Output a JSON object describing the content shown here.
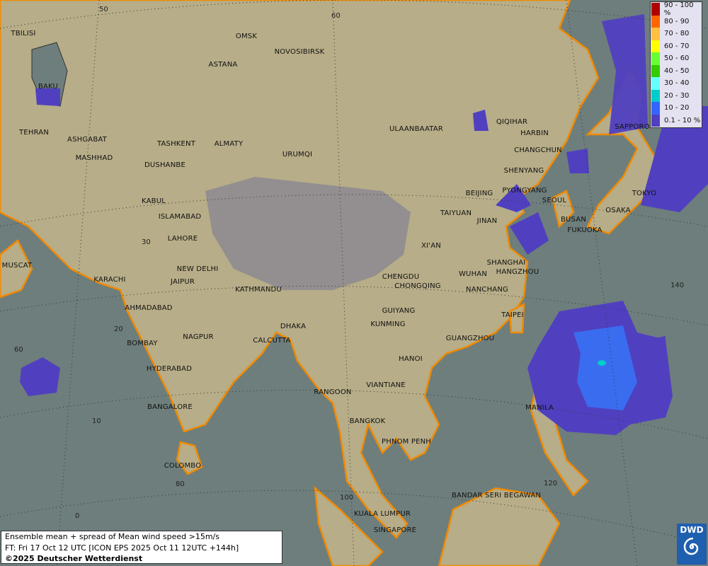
{
  "map": {
    "sea_color": "#6e7e7c",
    "land_color": "#b7ad88",
    "highland_color": "#8d8a92",
    "coast_color": "#f08a00",
    "cities": [
      "OMSK",
      "NOVOSIBIRSK",
      "ASTANA",
      "TBILISI",
      "BAKU",
      "TEHRAN",
      "ASHGABAT",
      "MASHHAD",
      "TASHKENT",
      "ALMATY",
      "DUSHANBE",
      "URUMQI",
      "ULAANBAATAR",
      "QIQIHAR",
      "HARBIN",
      "CHANGCHUN",
      "SAPPORO",
      "SHENYANG",
      "BEIJING",
      "PYONGYANG",
      "SEOUL",
      "TOKYO",
      "OSAKA",
      "BUSAN",
      "FUKUOKA",
      "KABUL",
      "ISLAMABAD",
      "LAHORE",
      "TAIYUAN",
      "JINAN",
      "XI'AN",
      "SHANGHAI",
      "MUSCAT",
      "NEW DELHI",
      "KARACHI",
      "JAIPUR",
      "KATHMANDU",
      "CHENGDU",
      "CHONGQING",
      "WUHAN",
      "HANGZHOU",
      "NANCHANG",
      "AHMADABAD",
      "TAIPEI",
      "GUIYANG",
      "KUNMING",
      "DHAKA",
      "CALCUTTA",
      "NAGPUR",
      "BOMBAY",
      "GUANGZHOU",
      "HANOI",
      "HYDERABAD",
      "RANGOON",
      "VIANTIANE",
      "MANILA",
      "BANGALORE",
      "BANGKOK",
      "PHNOM PENH",
      "COLOMBO",
      "BANDAR SERI BEGAWAN",
      "KUALA LUMPUR",
      "SINGAPORE"
    ],
    "grid_labels": [
      "50",
      "60",
      "30",
      "140",
      "20",
      "60",
      "10",
      "80",
      "0",
      "100",
      "120"
    ]
  },
  "legend": {
    "items": [
      {
        "label": "90 - 100 %",
        "color": "#b00000"
      },
      {
        "label": "80 - 90",
        "color": "#ff6600"
      },
      {
        "label": "70 - 80",
        "color": "#ffc040"
      },
      {
        "label": "60 - 70",
        "color": "#ffff00"
      },
      {
        "label": "50 - 60",
        "color": "#66ff33"
      },
      {
        "label": "40 - 50",
        "color": "#33cc00"
      },
      {
        "label": "30 - 40",
        "color": "#66ffff"
      },
      {
        "label": "20 - 30",
        "color": "#00cccc"
      },
      {
        "label": "10 - 20",
        "color": "#3366ff"
      },
      {
        "label": "0.1 - 10 %",
        "color": "#5040c0"
      }
    ]
  },
  "info": {
    "line1": "Ensemble mean + spread of Mean wind speed >15m/s",
    "line2": "FT: Fri 17 Oct 12 UTC [ICON EPS 2025 Oct 11 12UTC +144h]",
    "line3": "©2025 Deutscher Wetterdienst"
  },
  "logo": {
    "text": "DWD"
  }
}
